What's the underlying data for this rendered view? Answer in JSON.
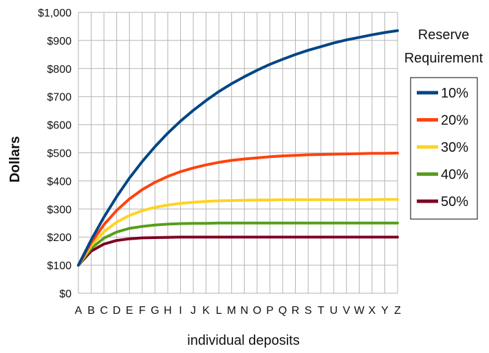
{
  "chart_data": {
    "type": "line",
    "title": "",
    "xlabel": "individual deposits",
    "ylabel": "Dollars",
    "categories": [
      "A",
      "B",
      "C",
      "D",
      "E",
      "F",
      "G",
      "H",
      "I",
      "J",
      "K",
      "L",
      "M",
      "N",
      "O",
      "P",
      "Q",
      "R",
      "S",
      "T",
      "U",
      "V",
      "W",
      "X",
      "Y",
      "Z"
    ],
    "y_ticks": [
      "$0",
      "$100",
      "$200",
      "$300",
      "$400",
      "$500",
      "$600",
      "$700",
      "$800",
      "$900",
      "$1,000"
    ],
    "ylim": [
      0,
      1000
    ],
    "grid": true,
    "legend": {
      "title_line1": "Reserve",
      "title_line2": "Requirement",
      "placement": "right"
    },
    "series": [
      {
        "name": "10%",
        "color": "#004586",
        "values": [
          100,
          190,
          271,
          344,
          410,
          469,
          522,
          570,
          613,
          651,
          686,
          718,
          746,
          771,
          794,
          815,
          833,
          850,
          865,
          878,
          891,
          902,
          911,
          920,
          928,
          935
        ]
      },
      {
        "name": "20%",
        "color": "#ff420e",
        "values": [
          100,
          180,
          244,
          295,
          336,
          369,
          395,
          416,
          433,
          446,
          457,
          466,
          473,
          478,
          482,
          486,
          489,
          491,
          493,
          494,
          495,
          496,
          497,
          498,
          498,
          499
        ]
      },
      {
        "name": "30%",
        "color": "#ffd320",
        "values": [
          100,
          170,
          219,
          253,
          277,
          294,
          306,
          314,
          320,
          324,
          327,
          329,
          330,
          331,
          332,
          332,
          333,
          333,
          333,
          333,
          333,
          333,
          333,
          333,
          334,
          334
        ]
      },
      {
        "name": "40%",
        "color": "#579d1c",
        "values": [
          100,
          160,
          196,
          218,
          231,
          238,
          243,
          246,
          248,
          249,
          249,
          250,
          250,
          250,
          250,
          250,
          250,
          250,
          250,
          250,
          250,
          250,
          250,
          250,
          250,
          250
        ]
      },
      {
        "name": "50%",
        "color": "#7e0021",
        "values": [
          100,
          150,
          175,
          188,
          194,
          197,
          198,
          199,
          200,
          200,
          200,
          200,
          200,
          200,
          200,
          200,
          200,
          200,
          200,
          200,
          200,
          200,
          200,
          200,
          200,
          200
        ]
      }
    ]
  }
}
